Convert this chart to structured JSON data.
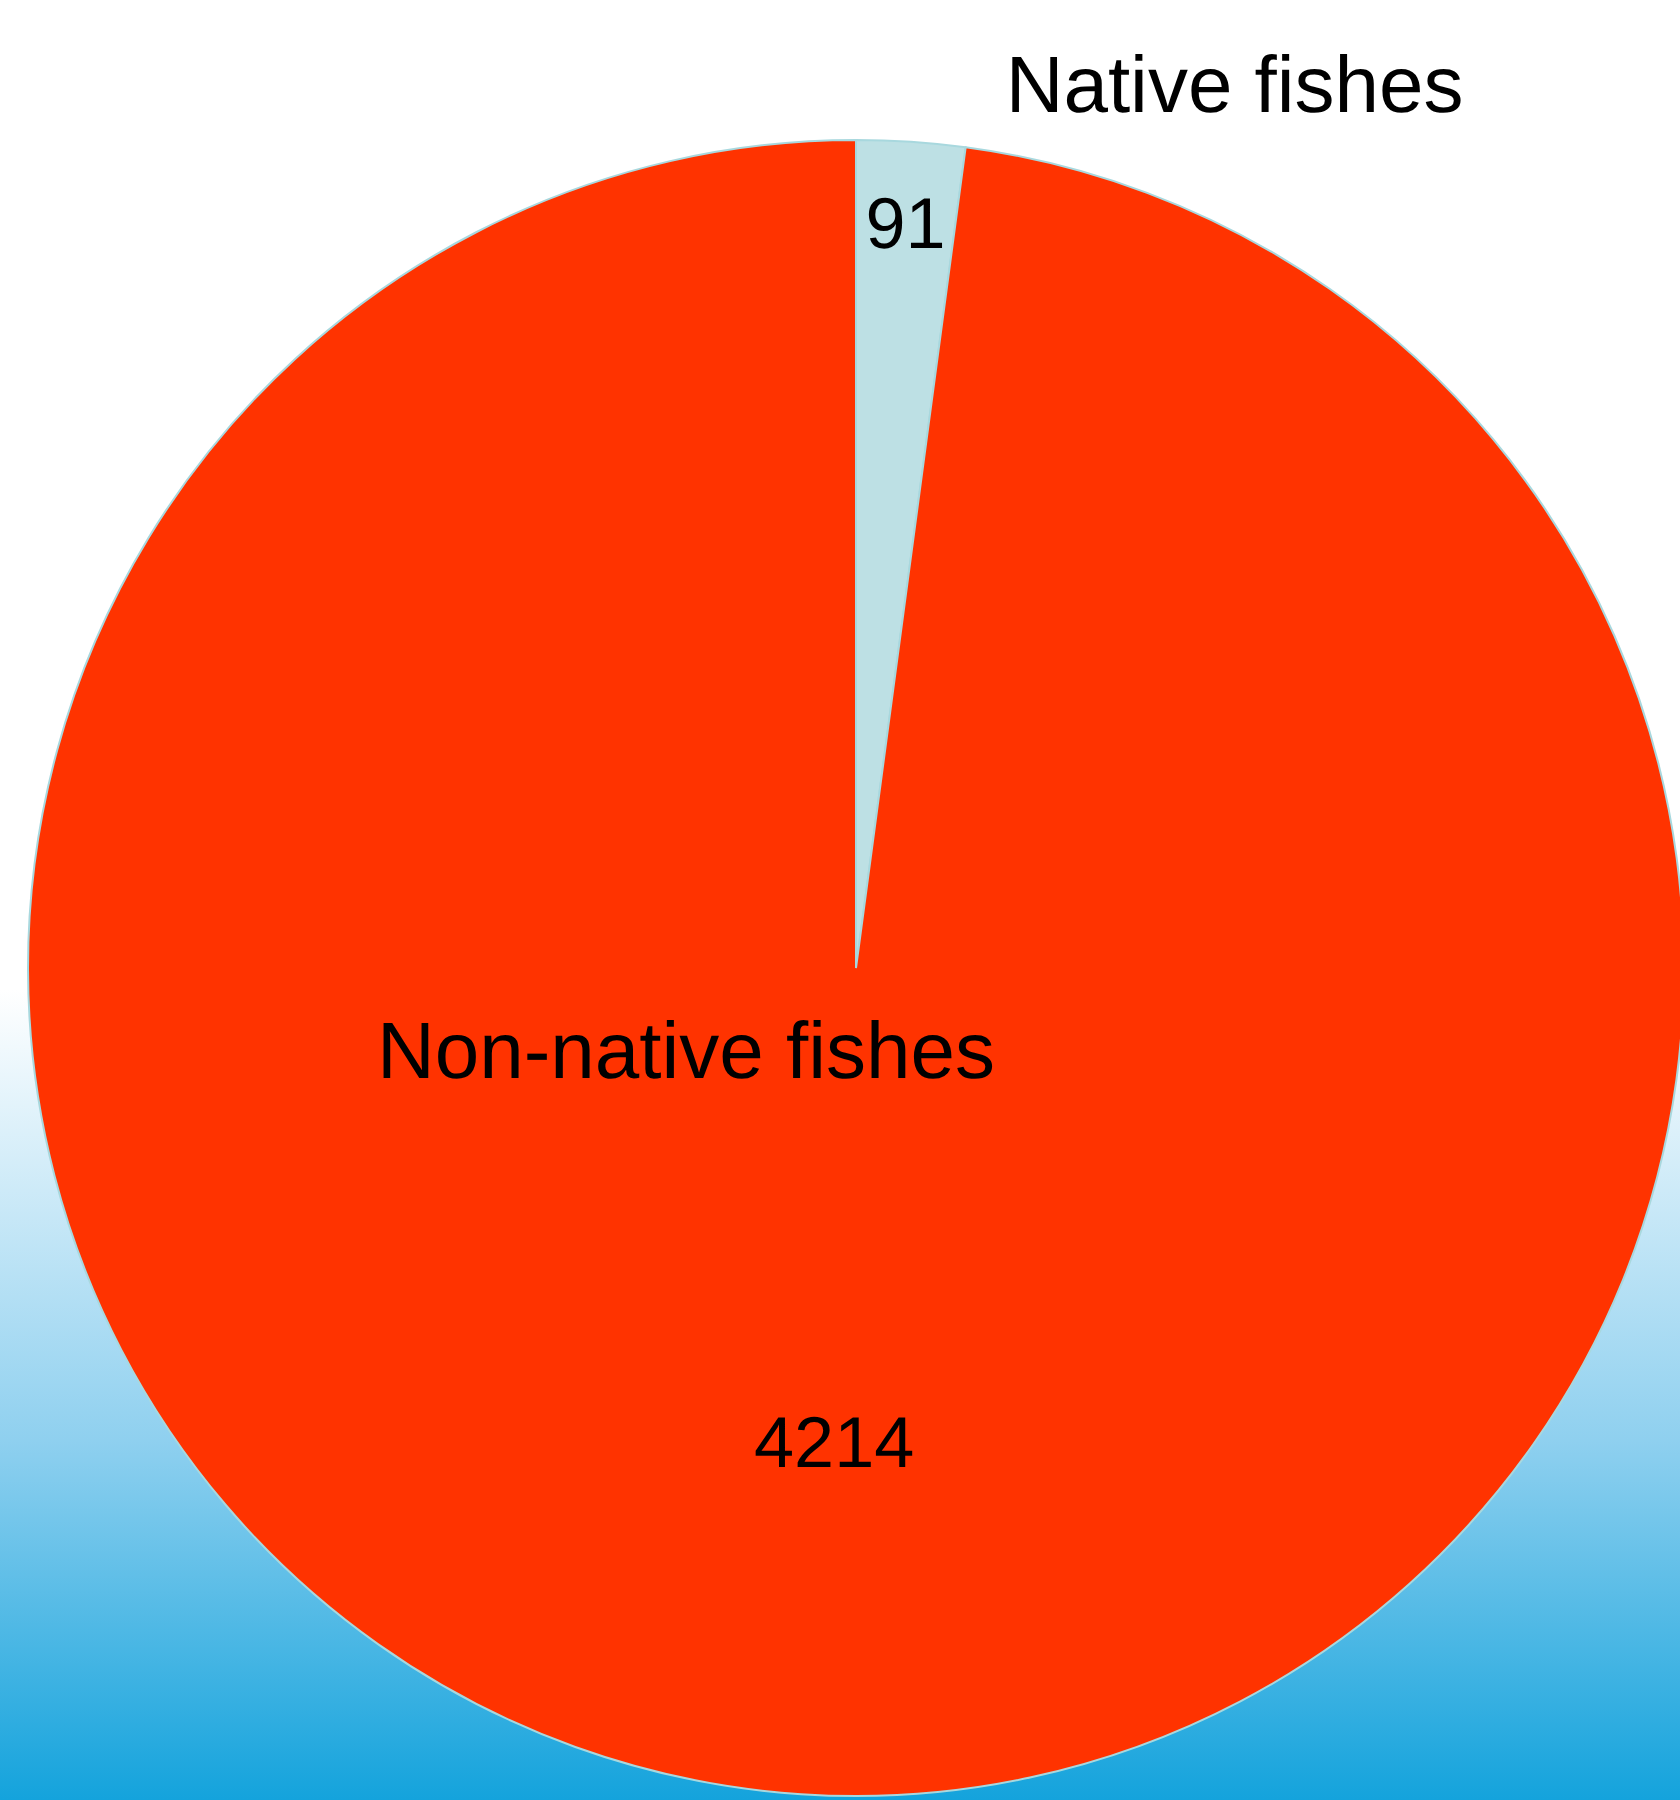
{
  "chart_data": {
    "type": "pie",
    "categories": [
      "Native fishes",
      "Non-native fishes"
    ],
    "values": [
      91,
      4214
    ],
    "colors": [
      "#bde0e4",
      "#ff3300"
    ],
    "data_labels": true
  }
}
